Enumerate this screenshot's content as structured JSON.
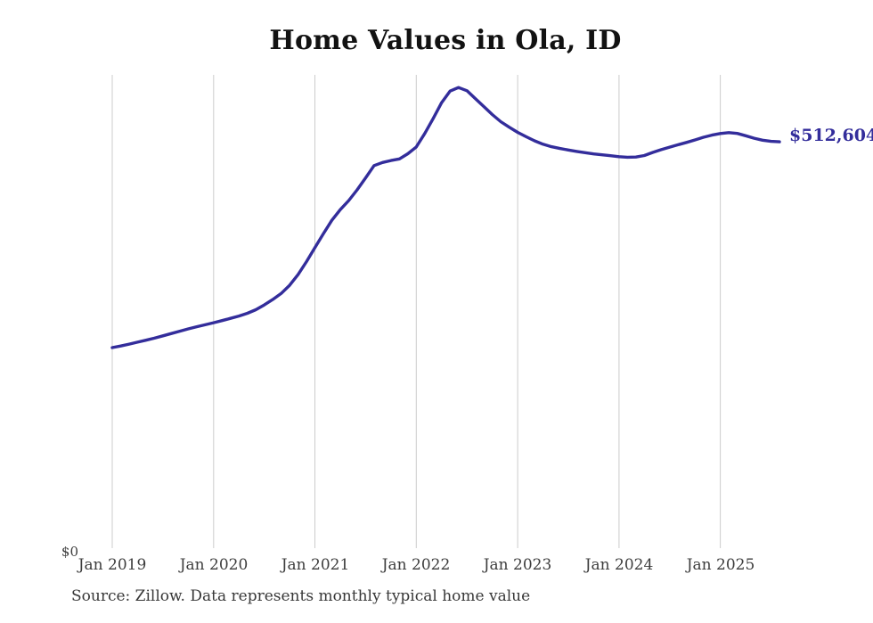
{
  "chart_data": {
    "type": "line",
    "title": "Home Values in Ola, ID",
    "source_note": "Source: Zillow. Data represents monthly typical home value",
    "end_label": "$512,604",
    "latest_value": 512604,
    "y_zero_label": "$0",
    "x_tick_labels": [
      "Jan 2019",
      "Jan 2020",
      "Jan 2021",
      "Jan 2022",
      "Jan 2023",
      "Jan 2024",
      "Jan 2025"
    ],
    "x_start_month": "2019-01",
    "x_end_month": "2025-08",
    "x_interval": "monthly",
    "ylim": [
      0,
      597000
    ],
    "grid": "vertical-only",
    "legend": "none",
    "line_color": "#332d9b",
    "grid_color": "#cccccc",
    "series": [
      {
        "name": "Typical home value (USD)",
        "values": [
          253000,
          255000,
          257400,
          259800,
          262300,
          264900,
          267800,
          270700,
          273700,
          276600,
          279300,
          281800,
          284300,
          287000,
          289800,
          292800,
          296300,
          300800,
          306800,
          313600,
          321200,
          331500,
          345000,
          361500,
          379000,
          396500,
          413500,
          427000,
          438500,
          452000,
          467000,
          482500,
          486500,
          489000,
          491000,
          497500,
          506000,
          523000,
          542000,
          562000,
          576500,
          581000,
          577000,
          567000,
          557000,
          547000,
          538000,
          531000,
          524500,
          519000,
          513800,
          509500,
          506400,
          504100,
          502200,
          500400,
          498800,
          497300,
          496100,
          495000,
          493800,
          493100,
          493300,
          495200,
          499200,
          502700,
          505800,
          508800,
          511800,
          514900,
          518300,
          521000,
          523000,
          524200,
          523100,
          520200,
          517100,
          514600,
          513100,
          512604
        ]
      }
    ]
  }
}
